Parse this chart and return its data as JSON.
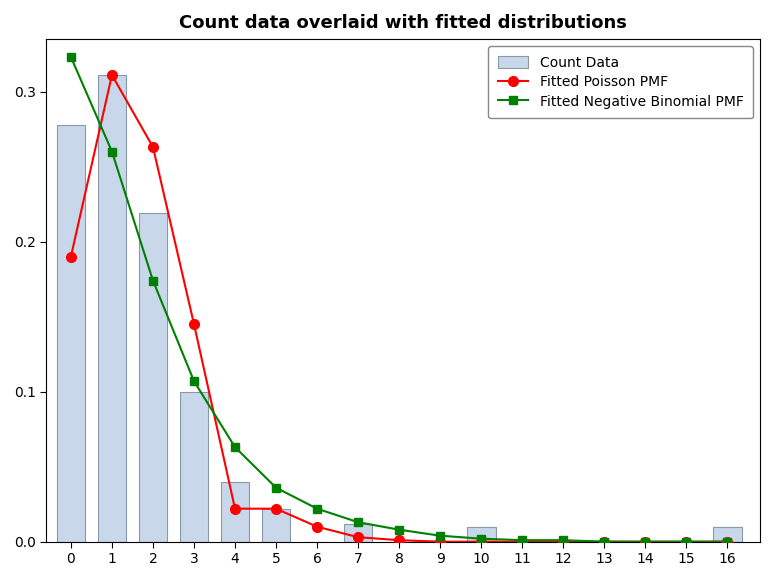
{
  "title": "Count data overlaid with fitted distributions",
  "bar_x": [
    0,
    1,
    2,
    3,
    4,
    5,
    6,
    7,
    8,
    9,
    10,
    11,
    12,
    13,
    14,
    15,
    16
  ],
  "bar_heights": [
    0.278,
    0.311,
    0.219,
    0.1,
    0.04,
    0.022,
    0.0,
    0.012,
    0.0,
    0.0,
    0.01,
    0.0,
    0.0,
    0.0,
    0.0,
    0.0,
    0.01
  ],
  "poisson_x": [
    0,
    1,
    2,
    3,
    4,
    5,
    6,
    7,
    8,
    9,
    10,
    11,
    12,
    13,
    14,
    15,
    16
  ],
  "poisson_y": [
    0.19,
    0.311,
    0.263,
    0.145,
    0.022,
    0.022,
    0.01,
    0.003,
    0.001,
    0.0,
    0.0,
    0.0,
    0.0,
    0.0,
    0.0,
    0.0,
    0.0
  ],
  "negbin_x": [
    0,
    1,
    2,
    3,
    4,
    5,
    6,
    7,
    8,
    9,
    10,
    11,
    12,
    13,
    14,
    15,
    16
  ],
  "negbin_y": [
    0.323,
    0.26,
    0.174,
    0.107,
    0.063,
    0.036,
    0.022,
    0.013,
    0.008,
    0.004,
    0.002,
    0.001,
    0.001,
    0.0,
    0.0,
    0.0,
    0.0
  ],
  "bar_color": "#c8d8ea",
  "bar_edge_color": "#8899aa",
  "poisson_color": "#ff0000",
  "negbin_color": "#008000",
  "xlim": [
    -0.6,
    16.8
  ],
  "ylim": [
    0.0,
    0.335
  ],
  "yticks": [
    0.0,
    0.1,
    0.2,
    0.3
  ],
  "xticks": [
    0,
    1,
    2,
    3,
    4,
    5,
    6,
    7,
    8,
    9,
    10,
    11,
    12,
    13,
    14,
    15,
    16
  ],
  "legend_labels": [
    "Count Data",
    "Fitted Poisson PMF",
    "Fitted Negative Binomial PMF"
  ],
  "title_fontsize": 13,
  "tick_fontsize": 10,
  "legend_fontsize": 10,
  "bar_width": 0.7
}
